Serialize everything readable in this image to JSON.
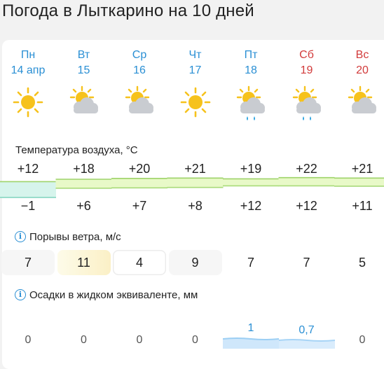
{
  "page_title": "Погода в Лыткарино на 10 дней",
  "days": [
    {
      "dow": "Пн",
      "date": "14 апр",
      "weekend": false,
      "icon": "sun-icon",
      "tmax": "+12",
      "tmin": "−1",
      "wind": "7",
      "precip": "0"
    },
    {
      "dow": "Вт",
      "date": "15",
      "weekend": false,
      "icon": "partly-cloudy-icon",
      "tmax": "+18",
      "tmin": "+6",
      "wind": "11",
      "precip": "0"
    },
    {
      "dow": "Ср",
      "date": "16",
      "weekend": false,
      "icon": "partly-cloudy-icon",
      "tmax": "+20",
      "tmin": "+7",
      "wind": "4",
      "precip": "0"
    },
    {
      "dow": "Чт",
      "date": "17",
      "weekend": false,
      "icon": "sun-icon",
      "tmax": "+21",
      "tmin": "+8",
      "wind": "9",
      "precip": "0"
    },
    {
      "dow": "Пт",
      "date": "18",
      "weekend": false,
      "icon": "partly-cloudy-rain-icon",
      "tmax": "+19",
      "tmin": "+12",
      "wind": "7",
      "precip": "1"
    },
    {
      "dow": "Сб",
      "date": "19",
      "weekend": true,
      "icon": "partly-cloudy-rain-icon",
      "tmax": "+22",
      "tmin": "+12",
      "wind": "7",
      "precip": "0,7"
    },
    {
      "dow": "Вс",
      "date": "20",
      "weekend": true,
      "icon": "partly-cloudy-icon",
      "tmax": "+21",
      "tmin": "+11",
      "wind": "5",
      "precip": "0"
    }
  ],
  "sections": {
    "temperature_label": "Температура воздуха, °С",
    "wind_label": "Порывы ветра, м/с",
    "precip_label": "Осадки в жидком эквиваленте, мм"
  },
  "chart_data": {
    "type": "area",
    "x": [
      "Пн",
      "Вт",
      "Ср",
      "Чт",
      "Пт",
      "Сб",
      "Вс"
    ],
    "series": [
      {
        "values": [
          12,
          18,
          20,
          21,
          19,
          22,
          21
        ]
      },
      {
        "values": [
          -1,
          6,
          7,
          8,
          12,
          12,
          11
        ]
      }
    ],
    "ylabel": "Температура воздуха, °С"
  },
  "colors": {
    "accent": "#2a8fd4",
    "weekend": "#d23b3b",
    "sun": "#f6c21c",
    "cloud": "#c9ccd1",
    "rain": "#2aa3e0",
    "temp_fill_warm": "#e8f9c8",
    "temp_fill_cool": "#d6f4ec"
  }
}
